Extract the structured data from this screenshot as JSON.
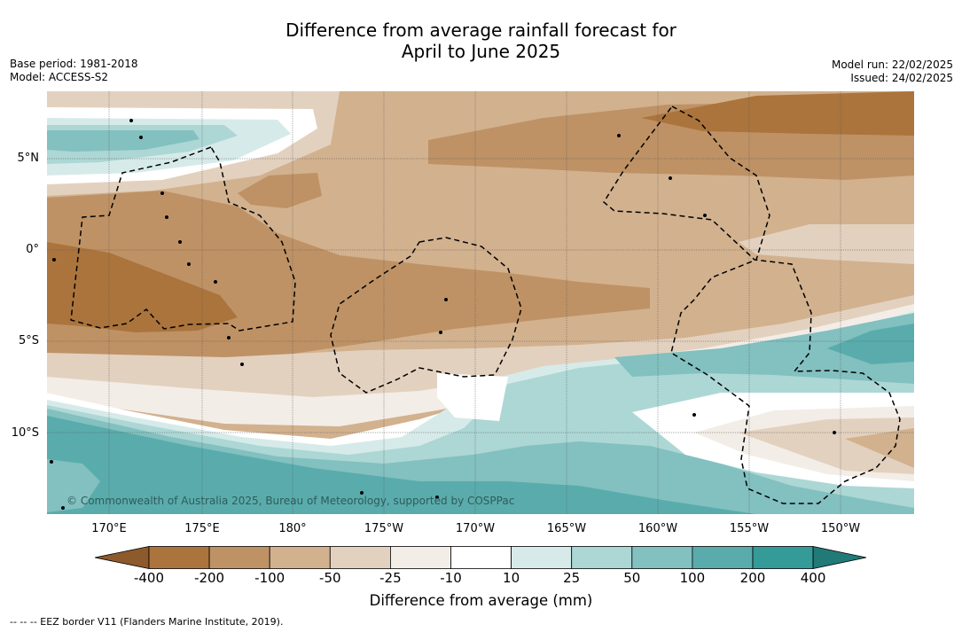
{
  "title": {
    "line1": "Difference from average rainfall forecast for",
    "line2": "April to June 2025"
  },
  "meta_left": {
    "base_period": "Base period: 1981-2018",
    "model": "Model: ACCESS-S2"
  },
  "meta_right": {
    "model_run": "Model run: 22/02/2025",
    "issued": "Issued: 24/02/2025"
  },
  "map": {
    "lat_labels": [
      "5°N",
      "0°",
      "5°S",
      "10°S"
    ],
    "lon_labels": [
      "170°E",
      "175°E",
      "180°",
      "175°W",
      "170°W",
      "165°W",
      "160°W",
      "155°W",
      "150°W"
    ],
    "copyright": "© Commonwealth of Australia 2025, Bureau of Meteorology, supported by COSPPac"
  },
  "colorbar": {
    "ticks": [
      "-400",
      "-200",
      "-100",
      "-50",
      "-25",
      "-10",
      "10",
      "25",
      "50",
      "100",
      "200",
      "400"
    ],
    "label": "Difference from average (mm)",
    "colors": [
      "#8c5a2b",
      "#ab743c",
      "#be9265",
      "#d2b18e",
      "#e3d1bf",
      "#f3ede7",
      "#ffffff",
      "#d6ebe9",
      "#acd7d5",
      "#83c0c0",
      "#5aacac",
      "#349b99",
      "#217a77"
    ]
  },
  "footnote": "-- -- -- EEZ border V11 (Flanders Marine Institute, 2019)."
}
